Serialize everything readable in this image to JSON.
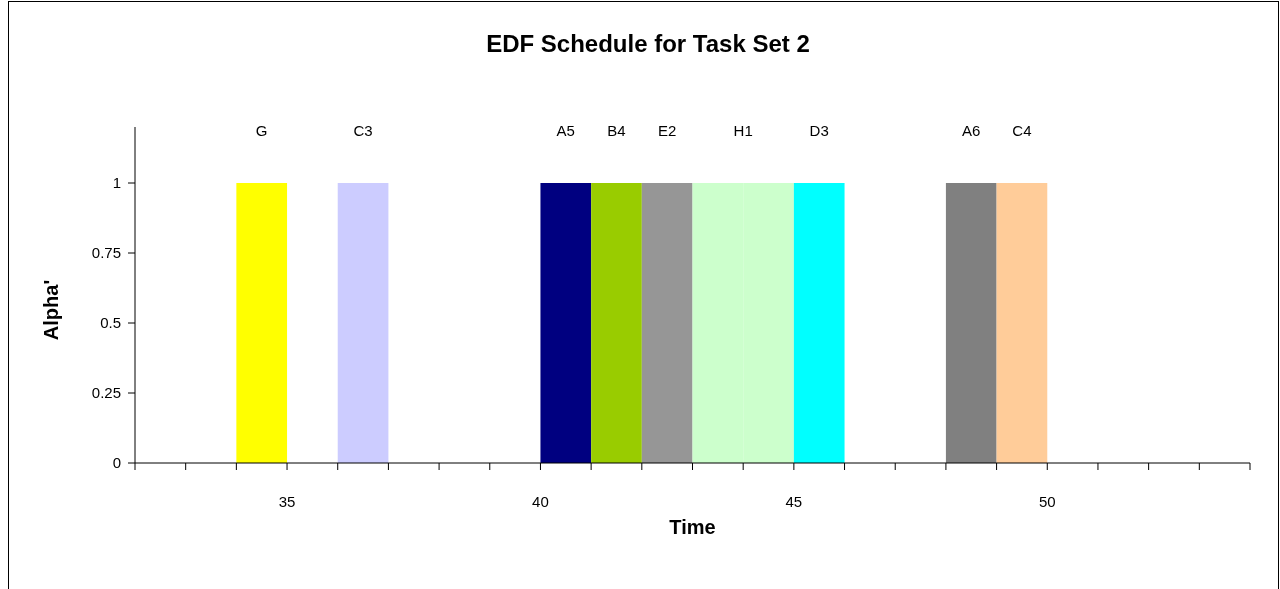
{
  "chart_data": {
    "type": "bar",
    "title": "EDF Schedule for Task Set 2",
    "xlabel": "Time",
    "ylabel": "Alpha'",
    "xlim": [
      32,
      54
    ],
    "xticks": [
      {
        "value": 33,
        "label": null
      },
      {
        "value": 34,
        "label": null
      },
      35,
      {
        "value": 36,
        "label": null
      },
      {
        "value": 37,
        "label": null
      },
      {
        "value": 38,
        "label": null
      },
      {
        "value": 39,
        "label": null
      },
      40,
      {
        "value": 41,
        "label": null
      },
      {
        "value": 42,
        "label": null
      },
      {
        "value": 43,
        "label": null
      },
      {
        "value": 44,
        "label": null
      },
      45,
      {
        "value": 46,
        "label": null
      },
      {
        "value": 47,
        "label": null
      },
      {
        "value": 48,
        "label": null
      },
      {
        "value": 49,
        "label": null
      },
      50,
      {
        "value": 51,
        "label": null
      },
      {
        "value": 52,
        "label": null
      },
      {
        "value": 53,
        "label": null
      }
    ],
    "ylim": [
      0,
      1.2
    ],
    "yticks": [
      0,
      0.25,
      0.5,
      0.75,
      1
    ],
    "grid": false,
    "series": [
      {
        "name": "G",
        "color": "#ffff00",
        "x": [
          34.5
        ],
        "values": [
          1
        ]
      },
      {
        "name": "C3",
        "color": "#ccccff",
        "x": [
          36.5
        ],
        "values": [
          1
        ]
      },
      {
        "name": "A5",
        "color": "#000080",
        "x": [
          40.5
        ],
        "values": [
          1
        ]
      },
      {
        "name": "B4",
        "color": "#99cc00",
        "x": [
          41.5
        ],
        "values": [
          1
        ]
      },
      {
        "name": "E2",
        "color": "#969696",
        "x": [
          42.5
        ],
        "values": [
          1
        ]
      },
      {
        "name": "H1",
        "color": "#ccffcc",
        "x": [
          43.5,
          44.5
        ],
        "values": [
          1,
          1
        ]
      },
      {
        "name": "D3",
        "color": "#00ffff",
        "x": [
          45.5
        ],
        "values": [
          1
        ]
      },
      {
        "name": "A6",
        "color": "#808080",
        "x": [
          48.5
        ],
        "values": [
          1
        ]
      },
      {
        "name": "C4",
        "color": "#ffcc99",
        "x": [
          49.5
        ],
        "values": [
          1
        ]
      }
    ]
  }
}
